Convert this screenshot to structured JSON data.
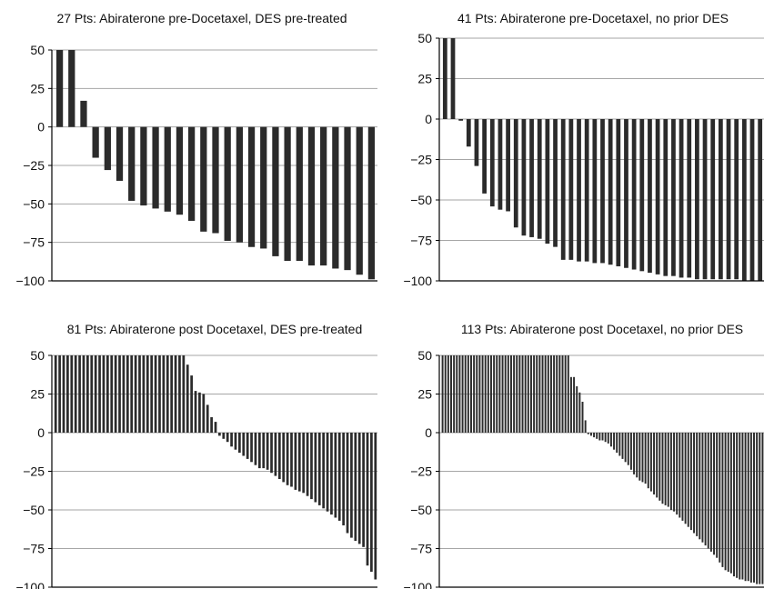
{
  "colors": {
    "bar": "#2b2b2b",
    "bar_edge": "#ffffff",
    "grid": "#a6a6a6",
    "axis": "#000000",
    "text": "#111111"
  },
  "chart_data": [
    {
      "type": "bar",
      "title": "27 Pts: Abiraterone pre-Docetaxel, DES pre-treated",
      "ylim": [
        -100,
        50
      ],
      "yticks": [
        "50",
        "25",
        "0",
        "−25",
        "−50",
        "−75",
        "−100"
      ],
      "ytick_values": [
        50,
        25,
        0,
        -25,
        -50,
        -75,
        -100
      ],
      "grid": true,
      "values": [
        50,
        50,
        17,
        -20,
        -28,
        -35,
        -48,
        -51,
        -53,
        -55,
        -57,
        -61,
        -68,
        -69,
        -74,
        -75,
        -78,
        -79,
        -84,
        -87,
        -87,
        -90,
        -90,
        -92,
        -93,
        -96,
        -99
      ]
    },
    {
      "type": "bar",
      "title": "41 Pts: Abiraterone pre-Docetaxel, no prior DES",
      "ylim": [
        -100,
        50
      ],
      "yticks": [
        "50",
        "25",
        "0",
        "−25",
        "−50",
        "−75",
        "−100"
      ],
      "ytick_values": [
        50,
        25,
        0,
        -25,
        -50,
        -75,
        -100
      ],
      "grid": true,
      "values": [
        50,
        50,
        -1,
        -17,
        -29,
        -46,
        -54,
        -56,
        -57,
        -67,
        -72,
        -73,
        -74,
        -77,
        -79,
        -87,
        -87,
        -88,
        -88,
        -89,
        -89,
        -90,
        -91,
        -92,
        -93,
        -94,
        -95,
        -96,
        -97,
        -97,
        -98,
        -98,
        -99,
        -99,
        -99,
        -99,
        -99,
        -99,
        -100,
        -100,
        -100
      ]
    },
    {
      "type": "bar",
      "title": "81 Pts: Abiraterone post Docetaxel, DES pre-treated",
      "ylim": [
        -100,
        50
      ],
      "yticks": [
        "50",
        "25",
        "0",
        "−25",
        "−50",
        "−75",
        "−100"
      ],
      "ytick_values": [
        50,
        25,
        0,
        -25,
        -50,
        -75,
        -100
      ],
      "grid": true,
      "values": [
        50,
        50,
        50,
        50,
        50,
        50,
        50,
        50,
        50,
        50,
        50,
        50,
        50,
        50,
        50,
        50,
        50,
        50,
        50,
        50,
        50,
        50,
        50,
        50,
        50,
        50,
        50,
        50,
        50,
        50,
        50,
        50,
        50,
        44,
        37,
        27,
        26,
        25,
        18,
        10,
        7,
        -2,
        -4,
        -6,
        -9,
        -11,
        -13,
        -15,
        -17,
        -19,
        -21,
        -23,
        -23,
        -24,
        -26,
        -28,
        -30,
        -32,
        -34,
        -35,
        -37,
        -38,
        -39,
        -41,
        -43,
        -45,
        -47,
        -49,
        -51,
        -53,
        -55,
        -57,
        -60,
        -65,
        -68,
        -70,
        -72,
        -74,
        -86,
        -90,
        -95
      ]
    },
    {
      "type": "bar",
      "title": "113 Pts: Abiraterone post Docetaxel, no prior DES",
      "ylim": [
        -100,
        50
      ],
      "yticks": [
        "50",
        "25",
        "0",
        "−25",
        "−50",
        "−75",
        "−100"
      ],
      "ytick_values": [
        50,
        25,
        0,
        -25,
        -50,
        -75,
        -100
      ],
      "grid": true,
      "values": [
        50,
        50,
        50,
        50,
        50,
        50,
        50,
        50,
        50,
        50,
        50,
        50,
        50,
        50,
        50,
        50,
        50,
        50,
        50,
        50,
        50,
        50,
        50,
        50,
        50,
        50,
        50,
        50,
        50,
        50,
        50,
        50,
        50,
        50,
        50,
        50,
        50,
        50,
        50,
        50,
        50,
        50,
        50,
        50,
        50,
        36,
        36,
        30,
        26,
        20,
        8,
        -1,
        -2,
        -3,
        -4,
        -5,
        -5,
        -6,
        -7,
        -9,
        -11,
        -13,
        -15,
        -17,
        -19,
        -21,
        -24,
        -27,
        -29,
        -31,
        -32,
        -33,
        -36,
        -38,
        -40,
        -42,
        -44,
        -46,
        -47,
        -48,
        -50,
        -51,
        -53,
        -55,
        -57,
        -59,
        -61,
        -63,
        -65,
        -67,
        -69,
        -71,
        -73,
        -75,
        -77,
        -79,
        -81,
        -84,
        -87,
        -89,
        -90,
        -91,
        -93,
        -94,
        -95,
        -95,
        -96,
        -96,
        -97,
        -97,
        -98,
        -98,
        -98
      ]
    }
  ]
}
